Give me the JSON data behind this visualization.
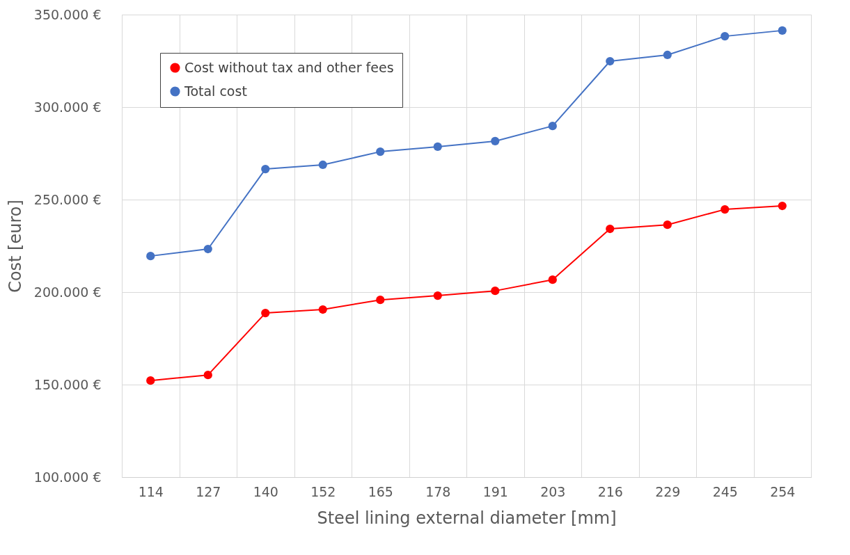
{
  "chart_data": {
    "type": "line",
    "xlabel": "Steel lining external diameter [mm]",
    "ylabel": "Cost [euro]",
    "categories": [
      "114",
      "127",
      "140",
      "152",
      "165",
      "178",
      "191",
      "203",
      "216",
      "229",
      "245",
      "254"
    ],
    "series": [
      {
        "name": "Cost without tax and other fees",
        "color": "#ff0000",
        "values": [
          152200,
          155200,
          188700,
          190600,
          195800,
          198100,
          200700,
          206700,
          234200,
          236400,
          244700,
          246600
        ]
      },
      {
        "name": "Total cost",
        "color": "#4472c4",
        "values": [
          219500,
          223300,
          266500,
          268800,
          275900,
          278600,
          281600,
          289800,
          324800,
          328200,
          338300,
          341400
        ]
      }
    ],
    "ylim": [
      100000,
      350000
    ],
    "yticks": [
      {
        "value": 100000,
        "label": "100.000 €"
      },
      {
        "value": 150000,
        "label": "150.000 €"
      },
      {
        "value": 200000,
        "label": "200.000 €"
      },
      {
        "value": 250000,
        "label": "250.000 €"
      },
      {
        "value": 300000,
        "label": "300.000 €"
      },
      {
        "value": 350000,
        "label": "350.000 €"
      }
    ],
    "grid": true,
    "legend": "top left",
    "marker": "circle",
    "line_style": "solid"
  }
}
